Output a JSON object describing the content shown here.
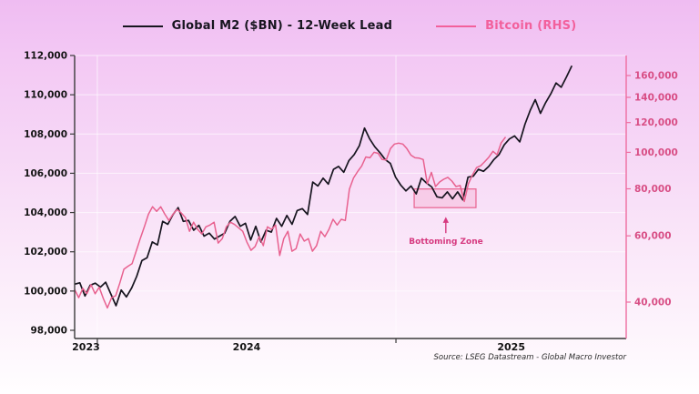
{
  "legend": {
    "items": [
      {
        "label": "Global M2 ($BN) - 12-Week Lead",
        "color": "#17151f"
      },
      {
        "label": "Bitcoin (RHS)",
        "color": "#f2609c"
      }
    ]
  },
  "source": "Source: LSEG Datastream - Global Macro Investor",
  "colors": {
    "m2_line": "#17151f",
    "bitcoin_line": "#e8618f",
    "left_axis": "#3a3a3a",
    "left_label": "#141414",
    "right_axis": "#ee6da0",
    "right_label": "#d84e85",
    "grid": "rgba(255,255,255,0.65)",
    "box_fill": "rgba(246,170,204,0.35)",
    "box_stroke": "#e8618f",
    "annotation": "#d6397f"
  },
  "chart_data": {
    "type": "line",
    "title": "",
    "x_axis": {
      "t_min": 2023.924,
      "t_max": 2025.771,
      "tick_years": [
        2024,
        2025
      ],
      "year_labels": [
        {
          "label": "2023",
          "t": 2023.962
        },
        {
          "label": "2024",
          "t": 2024.5
        },
        {
          "label": "2025",
          "t": 2025.386
        }
      ]
    },
    "left_axis": {
      "min": 98000,
      "max": 112000,
      "scale": "linear",
      "tick_values": [
        98000,
        100000,
        102000,
        104000,
        106000,
        108000,
        110000,
        112000
      ],
      "tick_labels": [
        "98,000",
        "100,000",
        "102,000",
        "104,000",
        "106,000",
        "108,000",
        "110,000",
        "112,000"
      ]
    },
    "right_axis": {
      "min": 40000,
      "max": 160000,
      "scale": "log",
      "tick_values": [
        40000,
        60000,
        80000,
        100000,
        120000,
        140000,
        160000
      ],
      "tick_labels": [
        "40,000",
        "60,000",
        "80,000",
        "100,000",
        "120,000",
        "140,000",
        "160,000"
      ]
    },
    "series": [
      {
        "name": "Global M2 ($BN) - 12-Week Lead",
        "axis": "left",
        "t_start": 2023.924,
        "t_end": 2025.588,
        "values": [
          100350,
          100420,
          99750,
          100300,
          100400,
          100200,
          100450,
          99850,
          99250,
          100050,
          99700,
          100150,
          100750,
          101550,
          101700,
          102500,
          102350,
          103550,
          103400,
          103900,
          104250,
          103550,
          103600,
          103100,
          103350,
          102800,
          102950,
          102650,
          102800,
          102950,
          103550,
          103800,
          103300,
          103450,
          102600,
          103300,
          102500,
          103100,
          103000,
          103700,
          103300,
          103850,
          103400,
          104100,
          104200,
          103900,
          105550,
          105350,
          105750,
          105450,
          106200,
          106350,
          106050,
          106650,
          106950,
          107400,
          108300,
          107750,
          107350,
          107050,
          106700,
          106500,
          105800,
          105400,
          105100,
          105350,
          104950,
          105750,
          105500,
          105300,
          104800,
          104750,
          105050,
          104700,
          105050,
          104650,
          105800,
          105850,
          106200,
          106100,
          106350,
          106700,
          106950,
          107450,
          107750,
          107900,
          107600,
          108500,
          109200,
          109750,
          109050,
          109600,
          110050,
          110600,
          110380,
          110900,
          111450
        ]
      },
      {
        "name": "Bitcoin",
        "axis": "right",
        "t_start": 2023.924,
        "t_end": 2025.366,
        "values": [
          43200,
          41100,
          43500,
          42100,
          44500,
          42100,
          43800,
          40900,
          38600,
          41100,
          41600,
          44900,
          48900,
          49800,
          50600,
          54600,
          59000,
          63400,
          68500,
          71700,
          69700,
          71700,
          68500,
          65900,
          68500,
          70500,
          69000,
          67100,
          61700,
          65200,
          62400,
          60700,
          63400,
          64100,
          65200,
          57400,
          59000,
          63400,
          65200,
          64300,
          63000,
          61700,
          57800,
          54900,
          56200,
          59700,
          56500,
          63400,
          62400,
          64100,
          53200,
          59000,
          61700,
          54600,
          55500,
          60700,
          58100,
          59000,
          54600,
          56500,
          61700,
          59700,
          62400,
          66400,
          64100,
          66400,
          65900,
          79800,
          85500,
          88900,
          92000,
          97200,
          96700,
          100000,
          99400,
          95700,
          95500,
          102300,
          105200,
          105800,
          105200,
          102300,
          98300,
          96700,
          96500,
          95700,
          82500,
          88500,
          81100,
          83400,
          84800,
          85800,
          83900,
          81100,
          81600,
          74000,
          82500,
          87100,
          91100,
          92100,
          94500,
          97100,
          100600,
          98500,
          105900,
          109500
        ]
      }
    ],
    "annotation": {
      "label": "Bottoming Zone",
      "box": {
        "t0": 2025.061,
        "t1": 2025.268,
        "v0": 104250,
        "v1": 105200
      },
      "arrow": {
        "t": 2025.167,
        "v_from": 102950,
        "v_to": 103780
      }
    }
  }
}
